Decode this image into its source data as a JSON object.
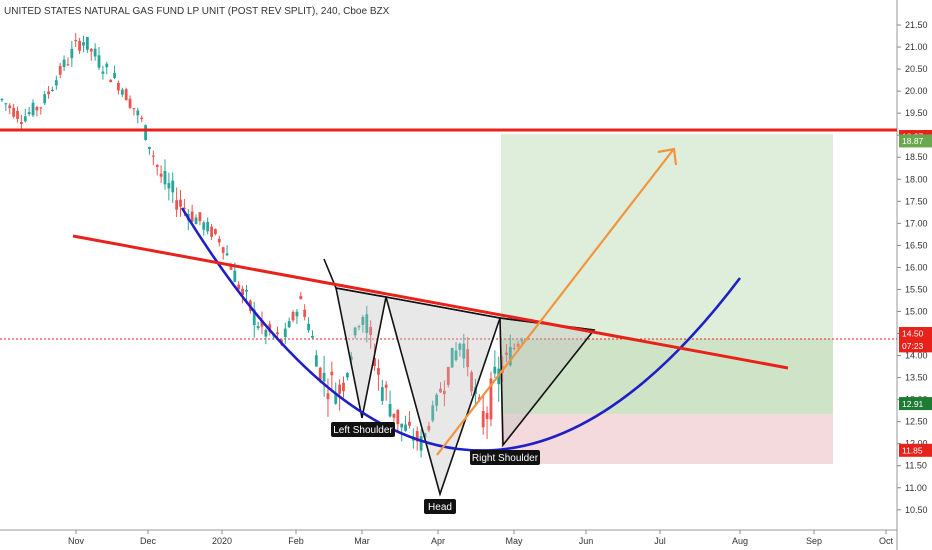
{
  "title": "UNITED STATES NATURAL GAS FUND LP UNIT (POST REV SPLIT), 240, Cboe BZX",
  "chart_data": {
    "type": "candlestick",
    "title": "UNITED STATES NATURAL GAS FUND LP UNIT (POST REV SPLIT), 240, Cboe BZX",
    "x_ticks": [
      "Nov",
      "Dec",
      "2020",
      "Feb",
      "Mar",
      "Apr",
      "May",
      "Jun",
      "Jul",
      "Aug",
      "Sep",
      "Oct"
    ],
    "y_ticks": [
      "21.50",
      "21.00",
      "20.50",
      "20.00",
      "19.50",
      "19.00",
      "18.50",
      "18.00",
      "17.50",
      "17.00",
      "16.50",
      "16.00",
      "15.50",
      "15.00",
      "14.50",
      "14.00",
      "13.50",
      "13.00",
      "12.50",
      "12.00",
      "11.50",
      "11.00",
      "10.50"
    ],
    "ylim": [
      10.45,
      21.75
    ],
    "y_axis_position": "right",
    "grid": false,
    "price_tags": [
      {
        "label": "18.97",
        "value": 18.97,
        "color": "#e8221b"
      },
      {
        "label": "18.87",
        "value": 18.87,
        "color": "#6aa84f"
      },
      {
        "label": "14.50",
        "value": 14.5,
        "color": "#e8221b"
      },
      {
        "label": "07:23",
        "value": 14.22,
        "color": "#e8221b"
      },
      {
        "label": "12.91",
        "value": 12.91,
        "color": "#1e7b34"
      },
      {
        "label": "11.85",
        "value": 11.85,
        "color": "#e8221b"
      }
    ],
    "annotations": [
      {
        "text": "Left Shoulder",
        "kind": "pattern-label"
      },
      {
        "text": "Head",
        "kind": "pattern-label"
      },
      {
        "text": "Right Shoulder",
        "kind": "pattern-label"
      }
    ],
    "levels": {
      "resistance": 18.97,
      "target": 18.87,
      "entry": 12.91,
      "stop": 11.85,
      "last": 14.5
    },
    "colors": {
      "up": "#26a69a",
      "down": "#ef5350",
      "resistance_line": "#e8221b",
      "arc": "#1f1fc7",
      "arrow": "#f0953e",
      "profit_zone": "#d9ebd3",
      "loss_zone": "#f3d6d9"
    },
    "ohlc_sample": [
      {
        "o": 20.1,
        "h": 20.6,
        "l": 19.6,
        "c": 19.8
      },
      {
        "o": 19.8,
        "h": 20.2,
        "l": 19.2,
        "c": 19.4
      },
      {
        "o": 19.4,
        "h": 19.9,
        "l": 19.0,
        "c": 19.7
      },
      {
        "o": 19.7,
        "h": 20.7,
        "l": 19.5,
        "c": 20.5
      },
      {
        "o": 20.5,
        "h": 21.4,
        "l": 20.2,
        "c": 21.2
      },
      {
        "o": 21.2,
        "h": 21.5,
        "l": 20.4,
        "c": 20.6
      },
      {
        "o": 20.6,
        "h": 21.0,
        "l": 19.9,
        "c": 20.1
      },
      {
        "o": 20.1,
        "h": 20.3,
        "l": 19.1,
        "c": 19.3
      },
      {
        "o": 19.3,
        "h": 19.5,
        "l": 17.8,
        "c": 18.0
      },
      {
        "o": 18.0,
        "h": 18.3,
        "l": 17.0,
        "c": 17.4
      },
      {
        "o": 17.4,
        "h": 17.8,
        "l": 16.8,
        "c": 17.0
      },
      {
        "o": 17.0,
        "h": 17.6,
        "l": 16.4,
        "c": 16.6
      },
      {
        "o": 16.6,
        "h": 16.9,
        "l": 15.2,
        "c": 15.4
      },
      {
        "o": 15.4,
        "h": 15.6,
        "l": 14.2,
        "c": 14.6
      },
      {
        "o": 14.6,
        "h": 15.0,
        "l": 14.0,
        "c": 14.3
      },
      {
        "o": 14.3,
        "h": 15.6,
        "l": 14.1,
        "c": 15.3
      },
      {
        "o": 15.3,
        "h": 15.5,
        "l": 13.2,
        "c": 13.5
      },
      {
        "o": 13.5,
        "h": 14.0,
        "l": 12.8,
        "c": 13.2
      },
      {
        "o": 13.2,
        "h": 15.4,
        "l": 13.0,
        "c": 15.1
      },
      {
        "o": 15.1,
        "h": 15.3,
        "l": 13.0,
        "c": 13.3
      },
      {
        "o": 13.3,
        "h": 13.6,
        "l": 12.1,
        "c": 12.4
      },
      {
        "o": 12.4,
        "h": 12.7,
        "l": 11.7,
        "c": 12.0
      },
      {
        "o": 12.0,
        "h": 13.6,
        "l": 11.8,
        "c": 13.3
      },
      {
        "o": 13.3,
        "h": 14.8,
        "l": 13.0,
        "c": 14.4
      },
      {
        "o": 14.4,
        "h": 15.0,
        "l": 12.2,
        "c": 12.5
      },
      {
        "o": 12.5,
        "h": 13.9,
        "l": 12.3,
        "c": 13.7
      },
      {
        "o": 13.7,
        "h": 14.7,
        "l": 13.4,
        "c": 14.5
      }
    ]
  }
}
